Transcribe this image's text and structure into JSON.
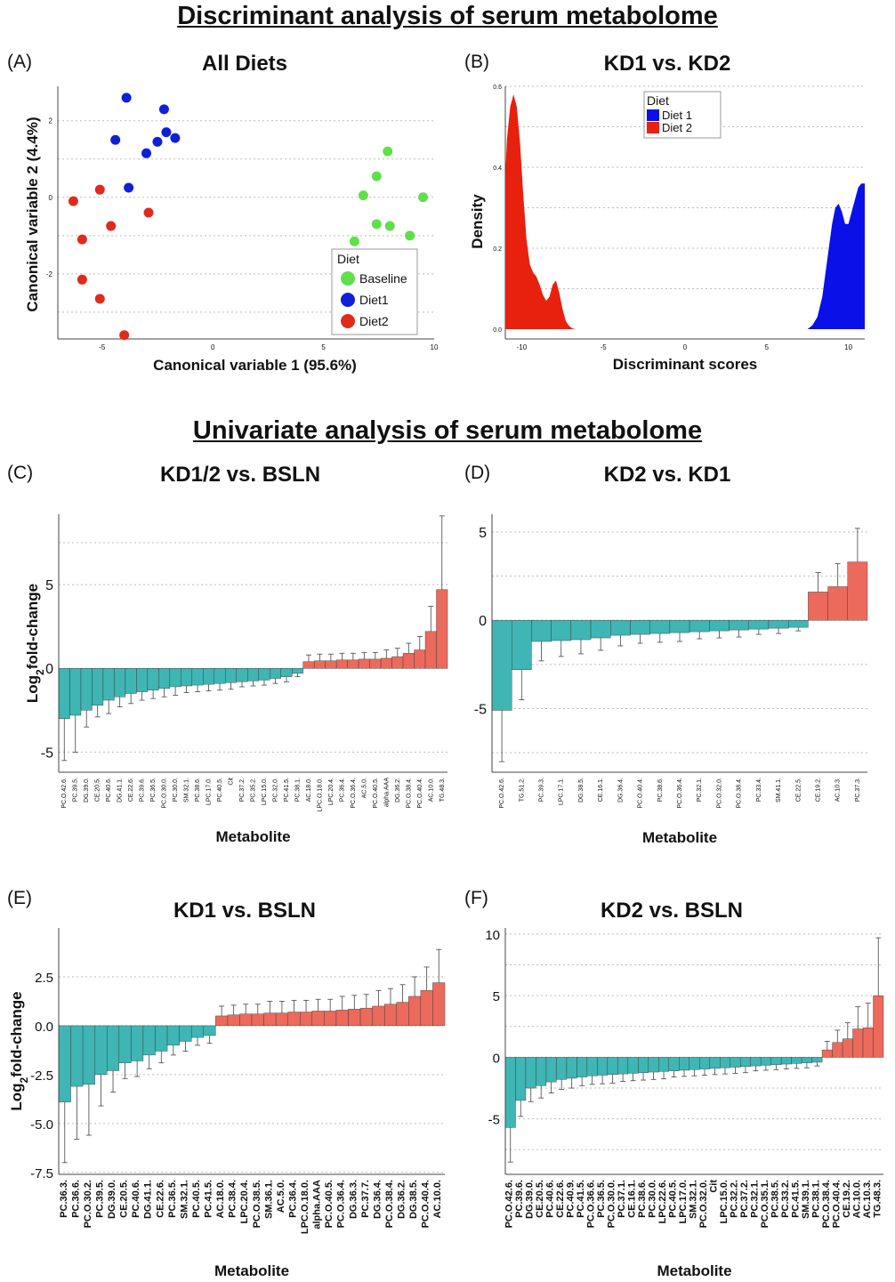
{
  "headings": {
    "discriminant": "Discriminant analysis of serum metabolome",
    "univariate": "Univariate analysis of serum metabolome"
  },
  "colors": {
    "baseline": "#5fe04a",
    "diet1": "#1020d8",
    "diet2": "#e02a1a",
    "neg_bar": "#3fb6b4",
    "pos_bar": "#ec6a5c",
    "density_diet1": "#0a10e8",
    "density_diet2": "#e8200e"
  },
  "panels": {
    "A": {
      "label": "(A)",
      "title": "All Diets"
    },
    "B": {
      "label": "(B)",
      "title": "KD1 vs. KD2"
    },
    "C": {
      "label": "(C)",
      "title": "KD1/2 vs. BSLN"
    },
    "D": {
      "label": "(D)",
      "title": "KD2 vs. KD1"
    },
    "E": {
      "label": "(E)",
      "title": "KD1 vs. BSLN"
    },
    "F": {
      "label": "(F)",
      "title": "KD2 vs. BSLN"
    }
  },
  "chart_data": [
    {
      "id": "A",
      "type": "scatter",
      "title": "All Diets",
      "xlabel": "Canonical variable 1 (95.6%)",
      "ylabel": "Canonical variable 2 (4.4%)",
      "xlim": [
        -7,
        10
      ],
      "ylim": [
        -3.7,
        2.9
      ],
      "xticks": [
        -5,
        0,
        5,
        10
      ],
      "yticks": [
        -2,
        0,
        2
      ],
      "grid": "horizontal dotted",
      "legend_title": "Diet",
      "legend_position": "bottom-right",
      "series": [
        {
          "name": "Baseline",
          "color": "#5fe04a",
          "points": [
            [
              7.9,
              1.2
            ],
            [
              7.4,
              0.55
            ],
            [
              6.8,
              0.05
            ],
            [
              9.5,
              0.0
            ],
            [
              7.4,
              -0.7
            ],
            [
              8.0,
              -0.75
            ],
            [
              8.9,
              -1.0
            ],
            [
              6.4,
              -1.15
            ]
          ]
        },
        {
          "name": "Diet1",
          "color": "#1020d8",
          "points": [
            [
              -3.9,
              2.6
            ],
            [
              -2.2,
              2.3
            ],
            [
              -2.1,
              1.7
            ],
            [
              -1.7,
              1.55
            ],
            [
              -2.5,
              1.45
            ],
            [
              -4.4,
              1.5
            ],
            [
              -3.0,
              1.15
            ],
            [
              -3.8,
              0.25
            ]
          ]
        },
        {
          "name": "Diet2",
          "color": "#e02a1a",
          "points": [
            [
              -6.3,
              -0.1
            ],
            [
              -5.1,
              0.2
            ],
            [
              -4.6,
              -0.75
            ],
            [
              -2.9,
              -0.4
            ],
            [
              -5.9,
              -1.1
            ],
            [
              -5.9,
              -2.15
            ],
            [
              -5.1,
              -2.65
            ],
            [
              -4.0,
              -3.6
            ]
          ]
        }
      ]
    },
    {
      "id": "B",
      "type": "area",
      "title": "KD1 vs. KD2",
      "xlabel": "Discriminant scores",
      "ylabel": "Density",
      "xlim": [
        -11,
        11
      ],
      "ylim": [
        0,
        0.6
      ],
      "xticks": [
        -10,
        -5,
        0,
        5,
        10
      ],
      "yticks": [
        0.0,
        0.2,
        0.4,
        0.6
      ],
      "grid": "horizontal dotted",
      "legend_title": "Diet",
      "legend_position": "top-left",
      "series": [
        {
          "name": "Diet 2",
          "color": "#e8200e",
          "x": [
            -11.0,
            -10.9,
            -10.7,
            -10.5,
            -10.3,
            -10.1,
            -9.9,
            -9.7,
            -9.5,
            -9.3,
            -9.1,
            -8.9,
            -8.7,
            -8.5,
            -8.3,
            -8.1,
            -7.9,
            -7.7,
            -7.5,
            -7.3,
            -7.1,
            -6.9,
            -6.7
          ],
          "y": [
            0.38,
            0.47,
            0.55,
            0.58,
            0.55,
            0.46,
            0.33,
            0.22,
            0.16,
            0.14,
            0.13,
            0.11,
            0.085,
            0.07,
            0.08,
            0.11,
            0.12,
            0.09,
            0.05,
            0.02,
            0.008,
            0.002,
            0.0
          ]
        },
        {
          "name": "Diet 1",
          "color": "#0a10e8",
          "x": [
            7.5,
            7.8,
            8.1,
            8.4,
            8.7,
            9.0,
            9.2,
            9.4,
            9.6,
            9.8,
            10.0,
            10.2,
            10.4,
            10.6,
            10.8,
            11.0
          ],
          "y": [
            0.0,
            0.01,
            0.03,
            0.08,
            0.17,
            0.26,
            0.3,
            0.31,
            0.29,
            0.26,
            0.26,
            0.29,
            0.32,
            0.35,
            0.36,
            0.36
          ]
        }
      ]
    },
    {
      "id": "C",
      "type": "bar",
      "title": "KD1/2 vs. BSLN",
      "xlabel": "Metabolite",
      "ylabel": "Log2fold-change",
      "ylim": [
        -6.2,
        9.2
      ],
      "yticks": [
        -5,
        0,
        5
      ],
      "categories": [
        "PC.O.42.6.",
        "PC.39.5.",
        "DG.39.0.",
        "CE.20.5.",
        "PC.40.6.",
        "DG.41.1.",
        "CE.22.6.",
        "PC.39.6.",
        "PC.36.5.",
        "PC.O.30.0.",
        "PC.30.0.",
        "SM.32.1.",
        "PC.38.6.",
        "LPC.17.0.",
        "PC.40.5.",
        "Cit",
        "PC.37.2.",
        "PC.35.2.",
        "LPC.15.0.",
        "PC.32.0.",
        "PC.41.5.",
        "PC.38.1.",
        "AC.18.0.",
        "LPC.O.18.0.",
        "LPC.20.4.",
        "PC.36.4.",
        "PC.O.36.4.",
        "AC.5.0.",
        "PC.O.40.5.",
        "alpha.AAA",
        "DG.36.2.",
        "PC.O.38.4.",
        "PC.O.40.4.",
        "AC.10.0.",
        "TG.48.3."
      ],
      "values": [
        -3.0,
        -2.8,
        -2.5,
        -2.2,
        -1.9,
        -1.7,
        -1.5,
        -1.4,
        -1.3,
        -1.2,
        -1.1,
        -1.05,
        -1.0,
        -0.95,
        -0.9,
        -0.85,
        -0.8,
        -0.75,
        -0.7,
        -0.6,
        -0.5,
        -0.3,
        0.4,
        0.45,
        0.45,
        0.5,
        0.5,
        0.55,
        0.55,
        0.6,
        0.7,
        0.9,
        1.1,
        2.2,
        4.7
      ],
      "errors": [
        2.5,
        2.2,
        1.0,
        0.7,
        0.8,
        0.6,
        0.6,
        0.5,
        0.5,
        0.5,
        0.5,
        0.4,
        0.4,
        0.4,
        0.4,
        0.4,
        0.3,
        0.3,
        0.3,
        0.3,
        0.3,
        0.2,
        0.4,
        0.4,
        0.4,
        0.4,
        0.4,
        0.4,
        0.4,
        0.5,
        0.5,
        0.6,
        0.8,
        1.5,
        4.4
      ]
    },
    {
      "id": "D",
      "type": "bar",
      "title": "KD2 vs. KD1",
      "xlabel": "Metabolite",
      "ylabel": "",
      "ylim": [
        -8.6,
        6
      ],
      "yticks": [
        -5,
        0,
        5
      ],
      "categories": [
        "PC.O.42.6.",
        "TG.51.2.",
        "PC.39.3.",
        "LPC.17.1.",
        "DG.38.5.",
        "CE.16.1.",
        "DG.36.4.",
        "PC.O.40.4.",
        "PC.38.6.",
        "PC.O.36.4.",
        "PC.32.1.",
        "PC.O.32.0.",
        "PC.O.38.4.",
        "PC.33.4.",
        "SM.41.1.",
        "CE.22.5.",
        "CE.19.2.",
        "AC.10.3.",
        "PC.37.3."
      ],
      "values": [
        -5.1,
        -2.8,
        -1.2,
        -1.15,
        -1.1,
        -1.0,
        -0.85,
        -0.8,
        -0.75,
        -0.7,
        -0.65,
        -0.6,
        -0.55,
        -0.5,
        -0.45,
        -0.4,
        1.6,
        1.9,
        3.3
      ],
      "errors": [
        2.9,
        1.7,
        1.1,
        0.9,
        0.8,
        0.7,
        0.6,
        0.5,
        0.5,
        0.5,
        0.4,
        0.4,
        0.4,
        0.3,
        0.3,
        0.2,
        1.1,
        1.3,
        1.9
      ]
    },
    {
      "id": "E",
      "type": "bar",
      "title": "KD1 vs. BSLN",
      "xlabel": "Metabolite",
      "ylabel": "Log2fold-change",
      "ylim": [
        -7.6,
        5.0
      ],
      "yticks": [
        -7.5,
        -5.0,
        -2.5,
        0.0,
        2.5
      ],
      "categories": [
        "PC.36.3.",
        "PC.36.6.",
        "PC.O.30.2.",
        "PC.39.5.",
        "DG.39.0.",
        "CE.20.5.",
        "PC.40.6.",
        "DG.41.1.",
        "CE.22.6.",
        "PC.36.5.",
        "SM.32.1.",
        "PC.40.5.",
        "PC.41.5.",
        "AC.18.0.",
        "PC.38.4.",
        "LPC.20.4.",
        "PC.O.38.5.",
        "SM.36.1.",
        "AC.5.0.",
        "PC.36.4.",
        "LPC.O.18.0.",
        "alpha.AAA",
        "PC.O.40.5.",
        "PC.O.36.4.",
        "DG.36.3.",
        "PC.37.7.",
        "DG.36.4.",
        "PC.O.38.4.",
        "DG.36.2.",
        "DG.38.5.",
        "PC.O.40.4.",
        "AC.10.0."
      ],
      "values": [
        -3.9,
        -3.1,
        -3.0,
        -2.5,
        -2.3,
        -1.9,
        -1.8,
        -1.5,
        -1.3,
        -1.0,
        -0.8,
        -0.6,
        -0.5,
        0.5,
        0.55,
        0.6,
        0.6,
        0.65,
        0.65,
        0.7,
        0.7,
        0.75,
        0.75,
        0.8,
        0.85,
        0.9,
        1.0,
        1.1,
        1.2,
        1.5,
        1.8,
        2.2
      ],
      "errors": [
        3.1,
        2.7,
        2.6,
        1.6,
        1.1,
        0.8,
        0.8,
        0.7,
        0.6,
        0.5,
        0.5,
        0.4,
        0.4,
        0.5,
        0.5,
        0.5,
        0.5,
        0.6,
        0.6,
        0.6,
        0.6,
        0.6,
        0.6,
        0.7,
        0.7,
        0.7,
        0.8,
        0.8,
        0.9,
        1.0,
        1.2,
        1.7
      ]
    },
    {
      "id": "F",
      "type": "bar",
      "title": "KD2 vs. BSLN",
      "xlabel": "Metabolite",
      "ylabel": "",
      "ylim": [
        -9.5,
        10.5
      ],
      "yticks": [
        -5,
        0,
        5,
        10
      ],
      "categories": [
        "PC.O.42.6.",
        "PC.39.6.",
        "DG.39.0.",
        "CE.20.5.",
        "PC.40.6.",
        "CE.22.6.",
        "PC.40.9.",
        "PC.41.5.",
        "PC.O.36.6.",
        "PC.36.5.",
        "PC.O.30.0.",
        "PC.37.1.",
        "CE.16.1.",
        "PC.38.6.",
        "PC.30.0.",
        "LPC.22.6.",
        "PC.40.5.",
        "LPC.17.0.",
        "SM.32.1.",
        "PC.O.32.0.",
        "Cit",
        "LPC.15.0.",
        "PC.32.2.",
        "PC.37.2.",
        "PC.32.1.",
        "PC.O.35.1.",
        "PC.38.5.",
        "PC.33.2.",
        "PC.41.5.",
        "SM.39.1.",
        "PC.38.1.",
        "PC.O.38.4.",
        "PC.O.40.4.",
        "CE.19.2.",
        "AC.10.0.",
        "AC.10.3.",
        "TG.48.3."
      ],
      "values": [
        -5.7,
        -3.5,
        -2.5,
        -2.3,
        -2.0,
        -1.8,
        -1.7,
        -1.6,
        -1.5,
        -1.45,
        -1.4,
        -1.35,
        -1.3,
        -1.25,
        -1.2,
        -1.15,
        -1.1,
        -1.05,
        -1.0,
        -0.95,
        -0.9,
        -0.85,
        -0.8,
        -0.75,
        -0.7,
        -0.65,
        -0.6,
        -0.55,
        -0.5,
        -0.45,
        -0.4,
        0.6,
        1.2,
        1.5,
        2.3,
        2.4,
        5.0
      ],
      "errors": [
        2.8,
        1.3,
        1.1,
        1.0,
        0.9,
        0.8,
        0.8,
        0.7,
        0.7,
        0.7,
        0.7,
        0.6,
        0.6,
        0.6,
        0.6,
        0.6,
        0.5,
        0.5,
        0.5,
        0.5,
        0.5,
        0.5,
        0.5,
        0.5,
        0.4,
        0.4,
        0.4,
        0.4,
        0.4,
        0.4,
        0.3,
        0.7,
        1.0,
        1.3,
        1.8,
        2.0,
        4.7
      ]
    }
  ]
}
